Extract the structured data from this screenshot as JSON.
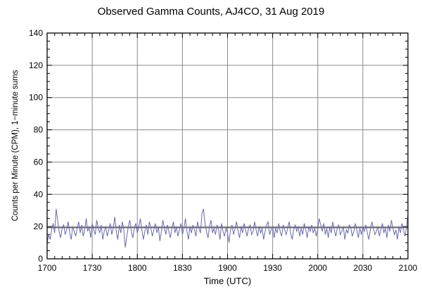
{
  "chart_data": {
    "type": "line",
    "title": "Observed Gamma Counts, AJ4CO, 31 Aug 2019",
    "xlabel": "Time (UTC)",
    "ylabel": "Counts per Minute (CPM), 1−minute sums",
    "x_tick_labels": [
      "1700",
      "1730",
      "1800",
      "1830",
      "1900",
      "1930",
      "2000",
      "2030",
      "2100"
    ],
    "x_range_minutes": 240,
    "x_major_tick_minutes": 30,
    "x_minor_tick_minutes": 5,
    "y_ticks": [
      0,
      20,
      40,
      60,
      80,
      100,
      120,
      140
    ],
    "ylim": [
      0,
      140
    ],
    "y_major_tick": 20,
    "y_minor_tick": 5,
    "grid": true,
    "legend": "none",
    "mean_line": 19.3,
    "line_color": "#6868ae",
    "grid_color": "#8a8a8a",
    "frame_color": "#000000",
    "mean_line_color": "#1a1a1a",
    "series": [
      {
        "name": "gamma_counts_cpm",
        "start_utc": "1700",
        "step_minutes": 1,
        "values": [
          10,
          15,
          12,
          18,
          22,
          16,
          31,
          24,
          17,
          13,
          19,
          21,
          15,
          18,
          23,
          16,
          12,
          20,
          17,
          14,
          19,
          23,
          16,
          21,
          14,
          18,
          25,
          17,
          20,
          13,
          22,
          18,
          15,
          24,
          19,
          16,
          21,
          12,
          17,
          20,
          14,
          18,
          22,
          15,
          19,
          26,
          17,
          12,
          21,
          16,
          23,
          18,
          7,
          14,
          20,
          24,
          17,
          13,
          19,
          22,
          16,
          20,
          25,
          18,
          12,
          17,
          21,
          15,
          23,
          19,
          14,
          18,
          22,
          16,
          20,
          11,
          17,
          24,
          19,
          15,
          21,
          17,
          13,
          19,
          23,
          16,
          20,
          14,
          18,
          22,
          15,
          19,
          25,
          17,
          12,
          20,
          16,
          21,
          18,
          14,
          23,
          19,
          16,
          28,
          31,
          22,
          17,
          13,
          20,
          24,
          16,
          19,
          15,
          21,
          18,
          12,
          22,
          17,
          14,
          19,
          16,
          10,
          18,
          21,
          15,
          19,
          23,
          17,
          13,
          20,
          16,
          22,
          18,
          14,
          19,
          21,
          15,
          17,
          23,
          18,
          14,
          20,
          16,
          19,
          12,
          17,
          21,
          23,
          15,
          18,
          20,
          13,
          19,
          16,
          22,
          17,
          14,
          21,
          18,
          15,
          19,
          23,
          16,
          12,
          18,
          21,
          17,
          20,
          14,
          19,
          15,
          22,
          18,
          13,
          20,
          17,
          21,
          16,
          19,
          14,
          18,
          25,
          21,
          17,
          22,
          15,
          19,
          13,
          20,
          16,
          23,
          18,
          14,
          19,
          21,
          15,
          17,
          20,
          12,
          18,
          16,
          21,
          19,
          14,
          17,
          22,
          18,
          13,
          19,
          15,
          20,
          17,
          21,
          16,
          12,
          18,
          23,
          19,
          15,
          17,
          20,
          14,
          18,
          22,
          16,
          19,
          13,
          21,
          17,
          24,
          19,
          15,
          18,
          12,
          20,
          16,
          22,
          18,
          14,
          19,
          27
        ]
      }
    ]
  }
}
